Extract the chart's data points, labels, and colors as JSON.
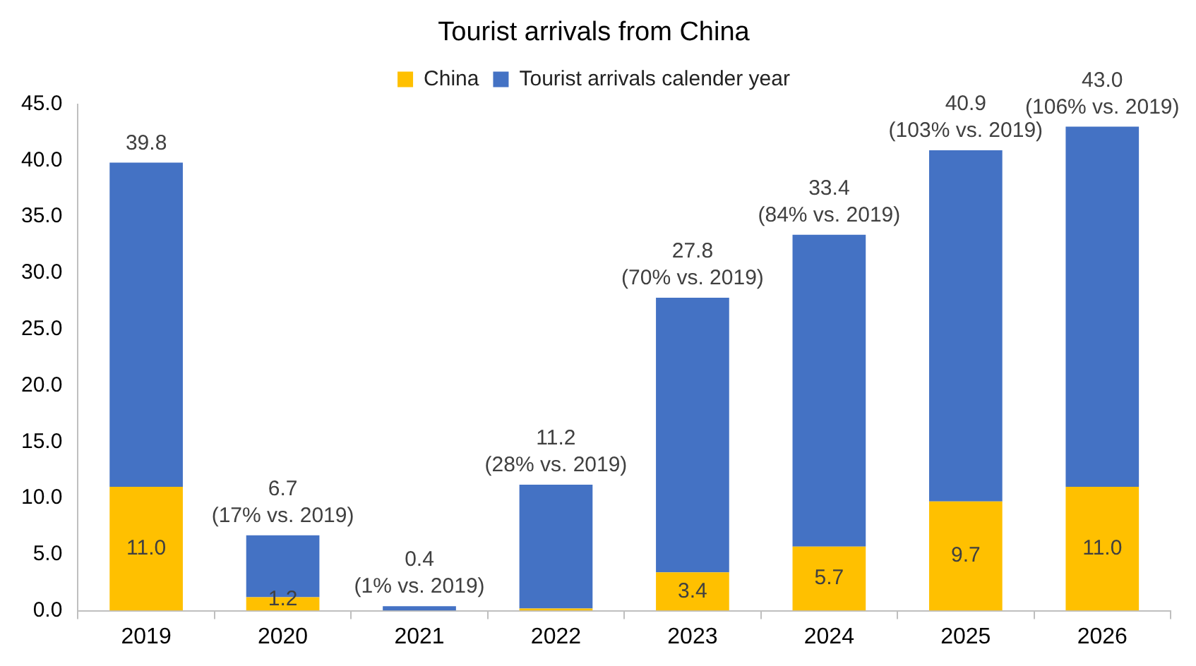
{
  "chart_data": {
    "type": "bar",
    "title": "Tourist arrivals from China",
    "categories": [
      "2019",
      "2020",
      "2021",
      "2022",
      "2023",
      "2024",
      "2025",
      "2026"
    ],
    "stacked": true,
    "series": [
      {
        "name": "China",
        "color": "#ffc000",
        "values": [
          11.0,
          1.2,
          0.0,
          0.2,
          3.4,
          5.7,
          9.7,
          11.0
        ],
        "value_labels": [
          "11.0",
          "1.2",
          null,
          null,
          "3.4",
          "5.7",
          "9.7",
          "11.0"
        ]
      },
      {
        "name": "Tourist arrivals calender year",
        "color": "#4472c4",
        "values": [
          28.8,
          5.5,
          0.4,
          11.0,
          24.4,
          27.7,
          31.2,
          32.0
        ]
      }
    ],
    "totals": [
      "39.8",
      "6.7\n(17% vs. 2019)",
      "0.4\n(1% vs. 2019)",
      "11.2\n(28% vs. 2019)",
      "27.8\n(70% vs. 2019)",
      "33.4\n(84% vs. 2019)",
      "40.9\n(103% vs. 2019)",
      "43.0\n(106% vs. 2019)"
    ],
    "ylim": [
      0,
      45
    ],
    "yticks": [
      {
        "value": 0,
        "label": "0.0"
      },
      {
        "value": 5,
        "label": "5.0"
      },
      {
        "value": 10,
        "label": "10.0"
      },
      {
        "value": 15,
        "label": "15.0"
      },
      {
        "value": 20,
        "label": "20.0"
      },
      {
        "value": 25,
        "label": "25.0"
      },
      {
        "value": 30,
        "label": "30.0"
      },
      {
        "value": 35,
        "label": "35.0"
      },
      {
        "value": 40,
        "label": "40.0"
      },
      {
        "value": 45,
        "label": "45.0"
      }
    ],
    "grid": false,
    "legend": "top"
  }
}
